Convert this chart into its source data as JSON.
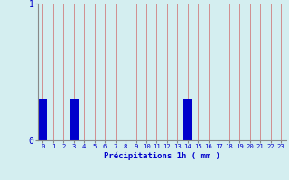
{
  "hours": [
    0,
    1,
    2,
    3,
    4,
    5,
    6,
    7,
    8,
    9,
    10,
    11,
    12,
    13,
    14,
    15,
    16,
    17,
    18,
    19,
    20,
    21,
    22,
    23
  ],
  "values": [
    0.3,
    0.0,
    0.0,
    0.3,
    0.0,
    0.0,
    0.0,
    0.0,
    0.0,
    0.0,
    0.0,
    0.0,
    0.0,
    0.0,
    0.3,
    0.0,
    0.0,
    0.0,
    0.0,
    0.0,
    0.0,
    0.0,
    0.0,
    0.0
  ],
  "bar_color": "#0000cc",
  "background_color": "#d4eef0",
  "grid_color": "#d08080",
  "xlabel": "Précipitations 1h ( mm )",
  "xlabel_color": "#0000cc",
  "tick_color": "#0000cc",
  "ylim": [
    0,
    1
  ],
  "yticks": [
    0,
    1
  ],
  "bar_width": 0.85
}
